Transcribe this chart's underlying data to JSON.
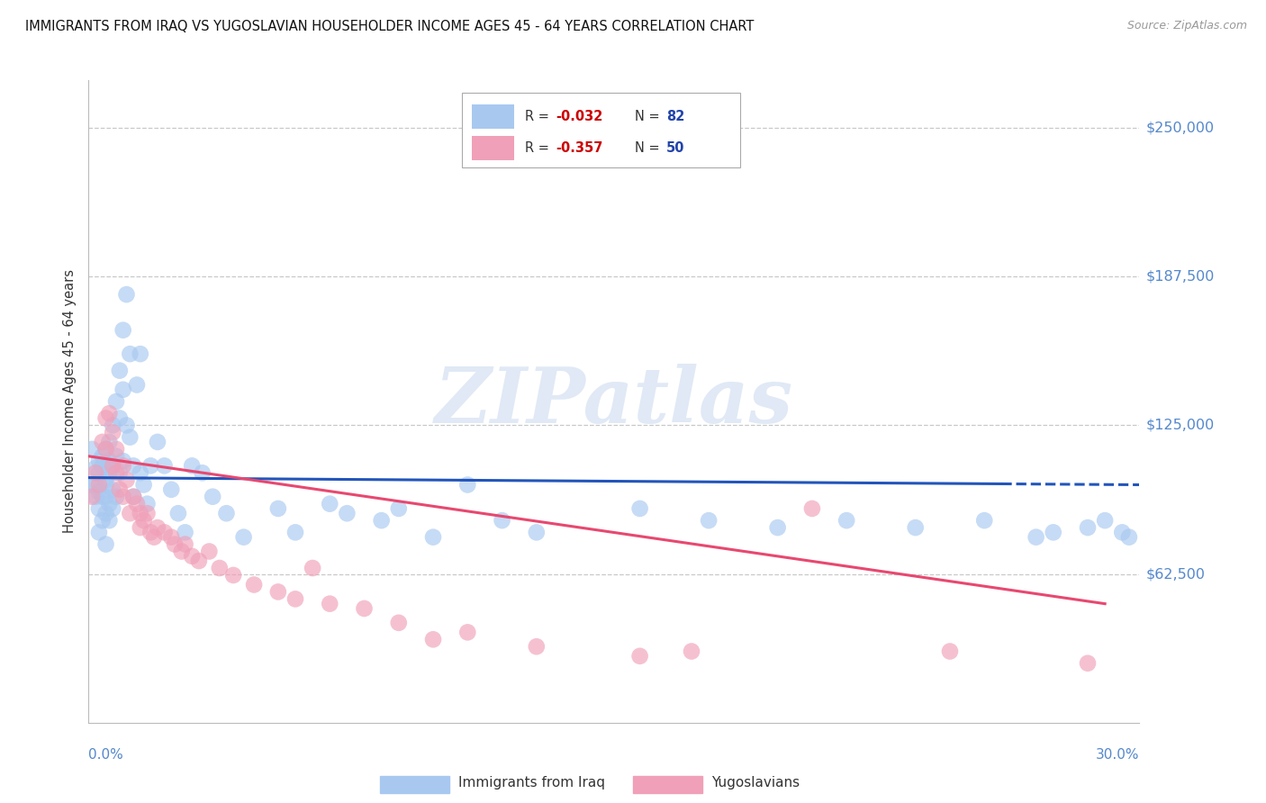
{
  "title": "IMMIGRANTS FROM IRAQ VS YUGOSLAVIAN HOUSEHOLDER INCOME AGES 45 - 64 YEARS CORRELATION CHART",
  "source": "Source: ZipAtlas.com",
  "ylabel": "Householder Income Ages 45 - 64 years",
  "ytick_labels": [
    "$250,000",
    "$187,500",
    "$125,000",
    "$62,500"
  ],
  "ytick_values": [
    250000,
    187500,
    125000,
    62500
  ],
  "ylim": [
    0,
    270000
  ],
  "xlim": [
    0.0,
    0.305
  ],
  "iraq_color": "#A8C8F0",
  "yugo_color": "#F0A0B8",
  "iraq_line_color": "#2255BB",
  "yugo_line_color": "#E84870",
  "watermark_text": "ZIPatlas",
  "background_color": "#FFFFFF",
  "grid_color": "#C8C8C8",
  "title_color": "#111111",
  "right_label_color": "#5588CC",
  "legend_R_color": "#CC0000",
  "legend_N_color": "#2244AA",
  "iraq_R": "-0.032",
  "iraq_N": "82",
  "yugo_R": "-0.357",
  "yugo_N": "50",
  "iraq_scatter_x": [
    0.001,
    0.001,
    0.002,
    0.002,
    0.002,
    0.003,
    0.003,
    0.003,
    0.003,
    0.003,
    0.004,
    0.004,
    0.004,
    0.004,
    0.005,
    0.005,
    0.005,
    0.005,
    0.005,
    0.005,
    0.006,
    0.006,
    0.006,
    0.006,
    0.006,
    0.007,
    0.007,
    0.007,
    0.007,
    0.008,
    0.008,
    0.008,
    0.009,
    0.009,
    0.009,
    0.01,
    0.01,
    0.01,
    0.011,
    0.011,
    0.012,
    0.012,
    0.013,
    0.013,
    0.014,
    0.015,
    0.015,
    0.016,
    0.017,
    0.018,
    0.02,
    0.022,
    0.024,
    0.026,
    0.028,
    0.03,
    0.033,
    0.036,
    0.04,
    0.045,
    0.055,
    0.06,
    0.07,
    0.075,
    0.085,
    0.09,
    0.1,
    0.11,
    0.12,
    0.13,
    0.16,
    0.18,
    0.2,
    0.22,
    0.24,
    0.26,
    0.275,
    0.28,
    0.29,
    0.295,
    0.3,
    0.302
  ],
  "iraq_scatter_y": [
    100000,
    115000,
    100000,
    95000,
    107000,
    105000,
    110000,
    90000,
    80000,
    97000,
    108000,
    95000,
    112000,
    85000,
    100000,
    115000,
    88000,
    95000,
    102000,
    75000,
    118000,
    105000,
    92000,
    85000,
    110000,
    125000,
    108000,
    98000,
    90000,
    135000,
    112000,
    95000,
    148000,
    128000,
    105000,
    165000,
    140000,
    110000,
    180000,
    125000,
    155000,
    120000,
    108000,
    95000,
    142000,
    105000,
    155000,
    100000,
    92000,
    108000,
    118000,
    108000,
    98000,
    88000,
    80000,
    108000,
    105000,
    95000,
    88000,
    78000,
    90000,
    80000,
    92000,
    88000,
    85000,
    90000,
    78000,
    100000,
    85000,
    80000,
    90000,
    85000,
    82000,
    85000,
    82000,
    85000,
    78000,
    80000,
    82000,
    85000,
    80000,
    78000
  ],
  "yugo_scatter_x": [
    0.001,
    0.002,
    0.003,
    0.004,
    0.005,
    0.005,
    0.006,
    0.007,
    0.007,
    0.008,
    0.008,
    0.009,
    0.01,
    0.01,
    0.011,
    0.012,
    0.013,
    0.014,
    0.015,
    0.015,
    0.016,
    0.017,
    0.018,
    0.019,
    0.02,
    0.022,
    0.024,
    0.025,
    0.027,
    0.028,
    0.03,
    0.032,
    0.035,
    0.038,
    0.042,
    0.048,
    0.055,
    0.06,
    0.065,
    0.07,
    0.08,
    0.09,
    0.1,
    0.11,
    0.13,
    0.16,
    0.175,
    0.21,
    0.25,
    0.29
  ],
  "yugo_scatter_y": [
    95000,
    105000,
    100000,
    118000,
    128000,
    115000,
    130000,
    122000,
    108000,
    115000,
    105000,
    98000,
    108000,
    95000,
    102000,
    88000,
    95000,
    92000,
    88000,
    82000,
    85000,
    88000,
    80000,
    78000,
    82000,
    80000,
    78000,
    75000,
    72000,
    75000,
    70000,
    68000,
    72000,
    65000,
    62000,
    58000,
    55000,
    52000,
    65000,
    50000,
    48000,
    42000,
    35000,
    38000,
    32000,
    28000,
    30000,
    90000,
    30000,
    25000
  ],
  "iraq_trend_x0": 0.0,
  "iraq_trend_x1": 0.305,
  "iraq_trend_y0": 103000,
  "iraq_trend_y1": 100000,
  "iraq_trend_solid_end": 0.265,
  "yugo_trend_x0": 0.0,
  "yugo_trend_x1": 0.295,
  "yugo_trend_y0": 112000,
  "yugo_trend_y1": 50000
}
